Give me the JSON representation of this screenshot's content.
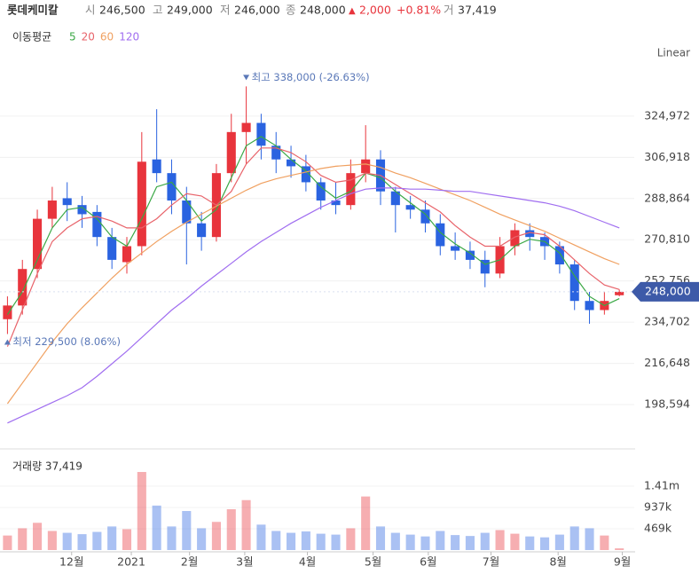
{
  "header": {
    "name": "롯데케미칼",
    "open_label": "시",
    "open": "246,500",
    "high_label": "고",
    "high": "249,000",
    "low_label": "저",
    "low": "246,000",
    "close_label": "종",
    "close": "248,000",
    "change_sign": "▲",
    "change": "2,000",
    "change_pct": "+0.81%",
    "volume_label": "거",
    "volume": "37,419"
  },
  "chart_data": {
    "type": "candlestick",
    "legend_title": "이동평균",
    "scale_label": "Linear",
    "categories": [
      null,
      null,
      null,
      null,
      null,
      null,
      null,
      null,
      null,
      null,
      null,
      null,
      null,
      null,
      null,
      null,
      null,
      null,
      null,
      null,
      null,
      null,
      null,
      null,
      null,
      null,
      null,
      null,
      null,
      null,
      null,
      null,
      null,
      null,
      null,
      null,
      null,
      null,
      null,
      null,
      null,
      null
    ],
    "open": [
      236000,
      242000,
      258000,
      280000,
      289000,
      286000,
      283000,
      272000,
      261000,
      268000,
      306000,
      300000,
      288000,
      278000,
      272000,
      300000,
      318000,
      322000,
      312000,
      306000,
      303000,
      296000,
      288000,
      286000,
      300000,
      306000,
      292000,
      286000,
      284000,
      278000,
      268000,
      266000,
      262000,
      256000,
      268000,
      275000,
      272000,
      268000,
      260000,
      244000,
      240000,
      246500
    ],
    "high": [
      246000,
      262000,
      284000,
      294000,
      296000,
      290000,
      286000,
      276000,
      272000,
      318000,
      328000,
      306000,
      294000,
      283000,
      304000,
      326000,
      338000,
      326000,
      318000,
      312000,
      308000,
      298000,
      296000,
      306000,
      321000,
      310000,
      294000,
      290000,
      288000,
      282000,
      274000,
      270000,
      266000,
      272000,
      278000,
      278000,
      274000,
      270000,
      262000,
      248000,
      248000,
      249000
    ],
    "low": [
      229500,
      238000,
      254000,
      276000,
      279000,
      276000,
      268000,
      258000,
      256000,
      264000,
      296000,
      282000,
      260000,
      266000,
      270000,
      296000,
      304000,
      306000,
      300000,
      298000,
      292000,
      284000,
      282000,
      284000,
      296000,
      286000,
      274000,
      280000,
      274000,
      264000,
      262000,
      258000,
      250000,
      254000,
      264000,
      266000,
      262000,
      256000,
      240000,
      234000,
      238000,
      246000
    ],
    "close": [
      242000,
      258000,
      280000,
      288000,
      286000,
      282000,
      272000,
      262000,
      268000,
      305000,
      300000,
      288000,
      278000,
      272000,
      300000,
      318000,
      322000,
      312000,
      306000,
      303000,
      296000,
      288000,
      286000,
      300000,
      306000,
      292000,
      286000,
      284000,
      278000,
      268000,
      266000,
      262000,
      256000,
      268000,
      275000,
      272000,
      268000,
      260000,
      244000,
      240000,
      244000,
      248000
    ],
    "up_color": "#e8343c",
    "down_color": "#2a63e0",
    "series": [
      {
        "name": "5",
        "color": "#3aa845",
        "values": [
          238000,
          248000,
          262000,
          276000,
          284000,
          285000,
          280000,
          272000,
          268000,
          280000,
          294000,
          296000,
          288000,
          279000,
          284000,
          298000,
          312000,
          316000,
          312000,
          306000,
          301000,
          294000,
          289000,
          292000,
          300000,
          298000,
          292000,
          287000,
          282000,
          274000,
          269000,
          265000,
          260000,
          262000,
          268000,
          271000,
          270000,
          265000,
          255000,
          246000,
          242000,
          245000
        ]
      },
      {
        "name": "20",
        "color": "#e8636a",
        "values": [
          224000,
          240000,
          256000,
          270000,
          276000,
          280000,
          281000,
          279000,
          276000,
          276000,
          280000,
          286000,
          291000,
          290000,
          286000,
          292000,
          304000,
          311000,
          311000,
          309000,
          305000,
          299000,
          296000,
          297000,
          300000,
          299000,
          295000,
          291000,
          287000,
          283000,
          277000,
          272000,
          268000,
          268000,
          272000,
          274000,
          273000,
          268000,
          262000,
          256000,
          251000,
          249000
        ]
      },
      {
        "name": "60",
        "color": "#f0a060",
        "values": [
          199000,
          208000,
          217000,
          226000,
          234000,
          241000,
          247500,
          254000,
          260000,
          265000,
          270000,
          274500,
          278500,
          282000,
          285500,
          289000,
          292500,
          295500,
          297500,
          299000,
          300500,
          302000,
          303000,
          303500,
          304000,
          302500,
          300000,
          298000,
          295500,
          293000,
          290500,
          288000,
          285000,
          282000,
          279500,
          277000,
          274500,
          271500,
          268500,
          265500,
          262500,
          260000
        ]
      },
      {
        "name": "120",
        "color": "#a06ef0",
        "values": [
          190500,
          193500,
          196500,
          199500,
          202500,
          206000,
          211000,
          216500,
          222000,
          228000,
          234000,
          240000,
          245000,
          250500,
          255500,
          260500,
          265500,
          270000,
          274000,
          278000,
          281500,
          285000,
          288000,
          291000,
          293000,
          293500,
          293500,
          293000,
          293000,
          292500,
          292000,
          292000,
          291000,
          290000,
          289000,
          288000,
          287000,
          285500,
          283500,
          281000,
          278500,
          276000
        ]
      }
    ],
    "ylim": [
      181500,
      346700
    ],
    "yticks": [
      {
        "value": 198594,
        "label": "198,594"
      },
      {
        "value": 216648,
        "label": "216,648"
      },
      {
        "value": 234702,
        "label": "234,702"
      },
      {
        "value": 252756,
        "label": "252,756"
      },
      {
        "value": 270810,
        "label": "270,810"
      },
      {
        "value": 288864,
        "label": "288,864"
      },
      {
        "value": 306918,
        "label": "306,918"
      },
      {
        "value": 324972,
        "label": "324,972"
      }
    ],
    "xlim": [
      -0.5,
      42
    ],
    "xticks": [
      {
        "value": 4.3,
        "label": "12월"
      },
      {
        "value": 8.3,
        "label": "2021"
      },
      {
        "value": 12.2,
        "label": "2월"
      },
      {
        "value": 15.9,
        "label": "3월"
      },
      {
        "value": 20.1,
        "label": "4월"
      },
      {
        "value": 24.5,
        "label": "5월"
      },
      {
        "value": 28.2,
        "label": "6월"
      },
      {
        "value": 32.4,
        "label": "7월"
      },
      {
        "value": 36.9,
        "label": "8월"
      },
      {
        "value": 41.2,
        "label": "9월"
      }
    ],
    "high_annotation": "최고 338,000 (-26.63%)",
    "low_annotation": "최저 229,500 (8.06%)",
    "last_price_label": "248,000",
    "volume_title": "거래량 37,419",
    "volume": [
      320000,
      480000,
      600000,
      420000,
      380000,
      350000,
      400000,
      520000,
      460000,
      1720000,
      980000,
      520000,
      860000,
      480000,
      620000,
      900000,
      1100000,
      560000,
      420000,
      380000,
      410000,
      360000,
      340000,
      480000,
      1180000,
      520000,
      380000,
      340000,
      300000,
      420000,
      330000,
      310000,
      380000,
      440000,
      360000,
      300000,
      280000,
      340000,
      520000,
      480000,
      320000,
      37419
    ],
    "volume_ylim": [
      0,
      2150000
    ],
    "volume_yticks": [
      {
        "value": 469000,
        "label": "469k"
      },
      {
        "value": 937000,
        "label": "937k"
      },
      {
        "value": 1410000,
        "label": "1.41m"
      }
    ]
  }
}
